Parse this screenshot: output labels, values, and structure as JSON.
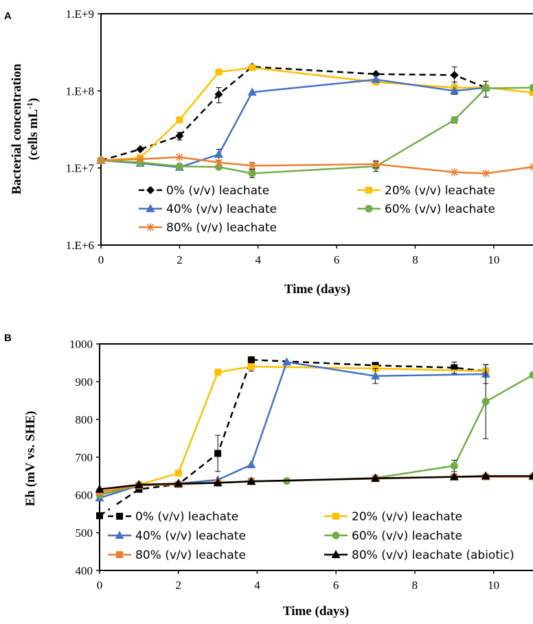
{
  "panels": [
    {
      "label": "A",
      "chart_data": {
        "type": "line",
        "title": "",
        "xlabel": "Time (days)",
        "ylabel_line1": "Bacterial concentration",
        "ylabel_line2_prefix": "(cells mL",
        "ylabel_line2_sup": "-1",
        "ylabel_line2_suffix": ")",
        "y_scale": "log",
        "xlim": [
          0,
          11
        ],
        "ylim": [
          1000000,
          1000000000
        ],
        "x_ticks": [
          0,
          2,
          4,
          6,
          8,
          10
        ],
        "y_ticks": [
          1000000,
          10000000,
          100000000,
          1000000000
        ],
        "y_tick_labels": [
          "1.E+6",
          "1.E+7",
          "1.E+8",
          "1.E+9"
        ],
        "grid": false,
        "legend": "inside-bottom",
        "series": [
          {
            "name": "0% (v/v) leachate",
            "color": "#000000",
            "dash": "dashed",
            "marker": "diamond",
            "x": [
              0,
              1,
              2,
              3,
              3.85,
              7,
              9,
              9.8
            ],
            "y": [
              12500000,
              17500000,
              26000000,
              90000000,
              205000000,
              165000000,
              160000000,
              110000000
            ],
            "err": [
              0,
              0,
              3000000,
              20000000,
              0,
              0,
              45000000,
              0
            ]
          },
          {
            "name": "20% (v/v) leachate",
            "color": "#FFC000",
            "dash": "solid",
            "marker": "square",
            "x": [
              0,
              1,
              2,
              3,
              3.85,
              7,
              9,
              9.8,
              11
            ],
            "y": [
              12500000,
              13500000,
              42000000,
              175000000,
              200000000,
              130000000,
              110000000,
              110000000,
              95000000
            ],
            "err": [
              0,
              0,
              0,
              15000000,
              0,
              0,
              20000000,
              0,
              0
            ]
          },
          {
            "name": "40% (v/v) leachate",
            "color": "#4472C4",
            "dash": "solid",
            "marker": "triangle",
            "x": [
              0,
              1,
              2,
              3,
              3.85,
              7,
              9,
              9.8
            ],
            "y": [
              12500000,
              11500000,
              10200000,
              15000000,
              96000000,
              140000000,
              100000000,
              110000000
            ],
            "err": [
              0,
              0,
              0,
              2500000,
              0,
              0,
              0,
              0
            ]
          },
          {
            "name": "60% (v/v) leachate",
            "color": "#70AD47",
            "dash": "solid",
            "marker": "circle",
            "x": [
              0,
              1,
              2,
              3,
              3.85,
              7,
              9,
              9.8,
              11
            ],
            "y": [
              12500000,
              11800000,
              10500000,
              10300000,
              8500000,
              10500000,
              42000000,
              108000000,
              110000000
            ],
            "err": [
              0,
              0,
              0,
              0,
              1000000,
              1500000,
              4000000,
              25000000,
              0
            ]
          },
          {
            "name": "80% (v/v) leachate",
            "color": "#ED7D31",
            "dash": "solid",
            "marker": "asterisk",
            "x": [
              0,
              1,
              2,
              3,
              3.85,
              7,
              9,
              9.8,
              11
            ],
            "y": [
              12500000,
              13000000,
              13800000,
              11800000,
              10700000,
              11200000,
              8800000,
              8500000,
              10300000
            ],
            "err": [
              0,
              0,
              0,
              0,
              1000000,
              1200000,
              0,
              0,
              0
            ]
          }
        ]
      }
    },
    {
      "label": "B",
      "chart_data": {
        "type": "line",
        "title": "",
        "xlabel": "Time (days)",
        "ylabel": "Eh (mV vs. SHE)",
        "y_scale": "linear",
        "xlim": [
          0,
          11
        ],
        "ylim": [
          400,
          1000
        ],
        "x_ticks": [
          0,
          2,
          4,
          6,
          8,
          10
        ],
        "y_ticks": [
          400,
          500,
          600,
          700,
          800,
          900,
          1000
        ],
        "y_tick_labels": [
          "400",
          "500",
          "600",
          "700",
          "800",
          "900",
          "1000"
        ],
        "grid": false,
        "legend": "inside-bottom",
        "series": [
          {
            "name": "0% (v/v) leachate",
            "color": "#000000",
            "dash": "dashed",
            "marker": "square",
            "x": [
              0,
              1,
              2,
              3,
              3.85,
              7,
              9,
              9.8
            ],
            "y": [
              545,
              615,
              628,
              710,
              958,
              943,
              937,
              928
            ],
            "err": [
              0,
              0,
              0,
              48,
              0,
              0,
              15,
              0
            ]
          },
          {
            "name": "20% (v/v) leachate",
            "color": "#FFC000",
            "dash": "solid",
            "marker": "square",
            "x": [
              0,
              1,
              2,
              3,
              3.85,
              7,
              9.8
            ],
            "y": [
              605,
              627,
              658,
              925,
              940,
              935,
              928
            ],
            "err": [
              0,
              0,
              0,
              0,
              12,
              0,
              0
            ]
          },
          {
            "name": "40% (v/v) leachate",
            "color": "#4472C4",
            "dash": "solid",
            "marker": "triangle",
            "x": [
              0,
              1,
              2,
              3,
              3.85,
              4.75,
              7,
              9.8
            ],
            "y": [
              592,
              625,
              630,
              640,
              680,
              952,
              915,
              920
            ],
            "err": [
              0,
              0,
              0,
              0,
              0,
              0,
              20,
              25
            ]
          },
          {
            "name": "60% (v/v) leachate",
            "color": "#70AD47",
            "dash": "solid",
            "marker": "circle",
            "x": [
              0,
              1,
              2,
              3,
              3.85,
              4.75,
              7,
              9,
              9.8,
              11
            ],
            "y": [
              600,
              625,
              628,
              632,
              636,
              637,
              645,
              677,
              847,
              918
            ],
            "err": [
              0,
              0,
              0,
              0,
              0,
              0,
              0,
              15,
              98,
              0
            ]
          },
          {
            "name": "80% (v/v) leachate",
            "color": "#ED7D31",
            "dash": "solid",
            "marker": "square",
            "x": [
              0,
              1,
              2,
              3,
              3.85,
              7,
              9,
              9.8,
              11
            ],
            "y": [
              608,
              625,
              628,
              633,
              636,
              643,
              648,
              648,
              648
            ],
            "err": [
              0,
              0,
              0,
              0,
              0,
              0,
              0,
              0,
              0
            ]
          },
          {
            "name": "80% (v/v) leachate (abiotic)",
            "color": "#000000",
            "dash": "solid",
            "marker": "triangle",
            "x": [
              0,
              1,
              2,
              3,
              3.85,
              7,
              9,
              9.8,
              11
            ],
            "y": [
              615,
              627,
              630,
              632,
              636,
              644,
              648,
              650,
              650
            ],
            "err": [
              0,
              0,
              0,
              0,
              0,
              0,
              0,
              0,
              0
            ]
          }
        ]
      }
    }
  ]
}
